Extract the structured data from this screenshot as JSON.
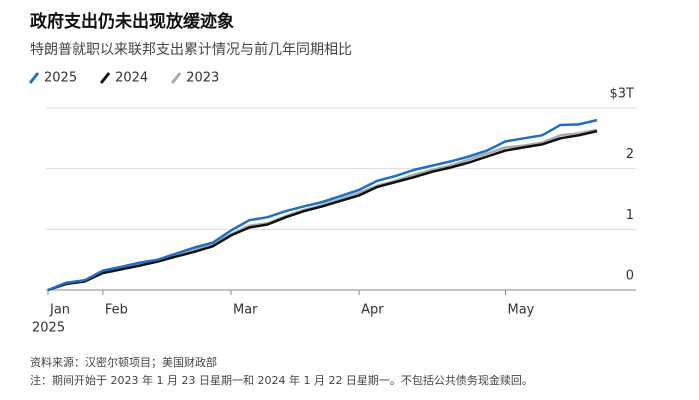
{
  "chart_data": {
    "type": "line",
    "title": "政府支出仍未出现放缓迹象",
    "subtitle": "特朗普就职以来联邦支出累计情况与前几年同期相比",
    "categories": [
      "Jan",
      null,
      null,
      "Feb",
      null,
      null,
      null,
      null,
      null,
      null,
      "Mar",
      null,
      null,
      null,
      null,
      null,
      null,
      "Apr",
      null,
      null,
      null,
      null,
      null,
      null,
      null,
      "May",
      null,
      null,
      null,
      null,
      null
    ],
    "year_label": "2025",
    "series": [
      {
        "name": "2025",
        "color": "#1f6fc5",
        "values": [
          0,
          0.12,
          0.16,
          0.32,
          0.38,
          0.45,
          0.5,
          0.6,
          0.7,
          0.78,
          0.98,
          1.15,
          1.2,
          1.3,
          1.38,
          1.45,
          1.55,
          1.65,
          1.8,
          1.88,
          1.98,
          2.05,
          2.12,
          2.2,
          2.3,
          2.45,
          2.5,
          2.55,
          2.72,
          2.73,
          2.8
        ]
      },
      {
        "name": "2024",
        "color": "#111111",
        "values": [
          0,
          0.1,
          0.14,
          0.28,
          0.34,
          0.4,
          0.47,
          0.55,
          0.63,
          0.72,
          0.9,
          1.03,
          1.08,
          1.2,
          1.3,
          1.38,
          1.47,
          1.56,
          1.7,
          1.78,
          1.86,
          1.95,
          2.02,
          2.1,
          2.2,
          2.3,
          2.35,
          2.4,
          2.5,
          2.55,
          2.62
        ]
      },
      {
        "name": "2023",
        "color": "#aaaaaa",
        "values": [
          0,
          0.1,
          0.15,
          0.3,
          0.36,
          0.42,
          0.5,
          0.58,
          0.66,
          0.75,
          0.92,
          1.06,
          1.1,
          1.22,
          1.32,
          1.4,
          1.5,
          1.6,
          1.72,
          1.8,
          1.9,
          1.98,
          2.05,
          2.15,
          2.25,
          2.35,
          2.38,
          2.43,
          2.55,
          2.58,
          2.64
        ]
      }
    ],
    "ylim": [
      0,
      3
    ],
    "yticks": [
      0,
      1,
      2,
      {
        "value": 3,
        "label": "$3T"
      }
    ],
    "grid": true,
    "source": "资料来源：汉密尔顿项目；美国财政部",
    "note": "注：期间开始于 2023 年 1 月 23 日星期一和 2024 年 1 月 22 日星期一。不包括公共债务现金赎回。"
  }
}
